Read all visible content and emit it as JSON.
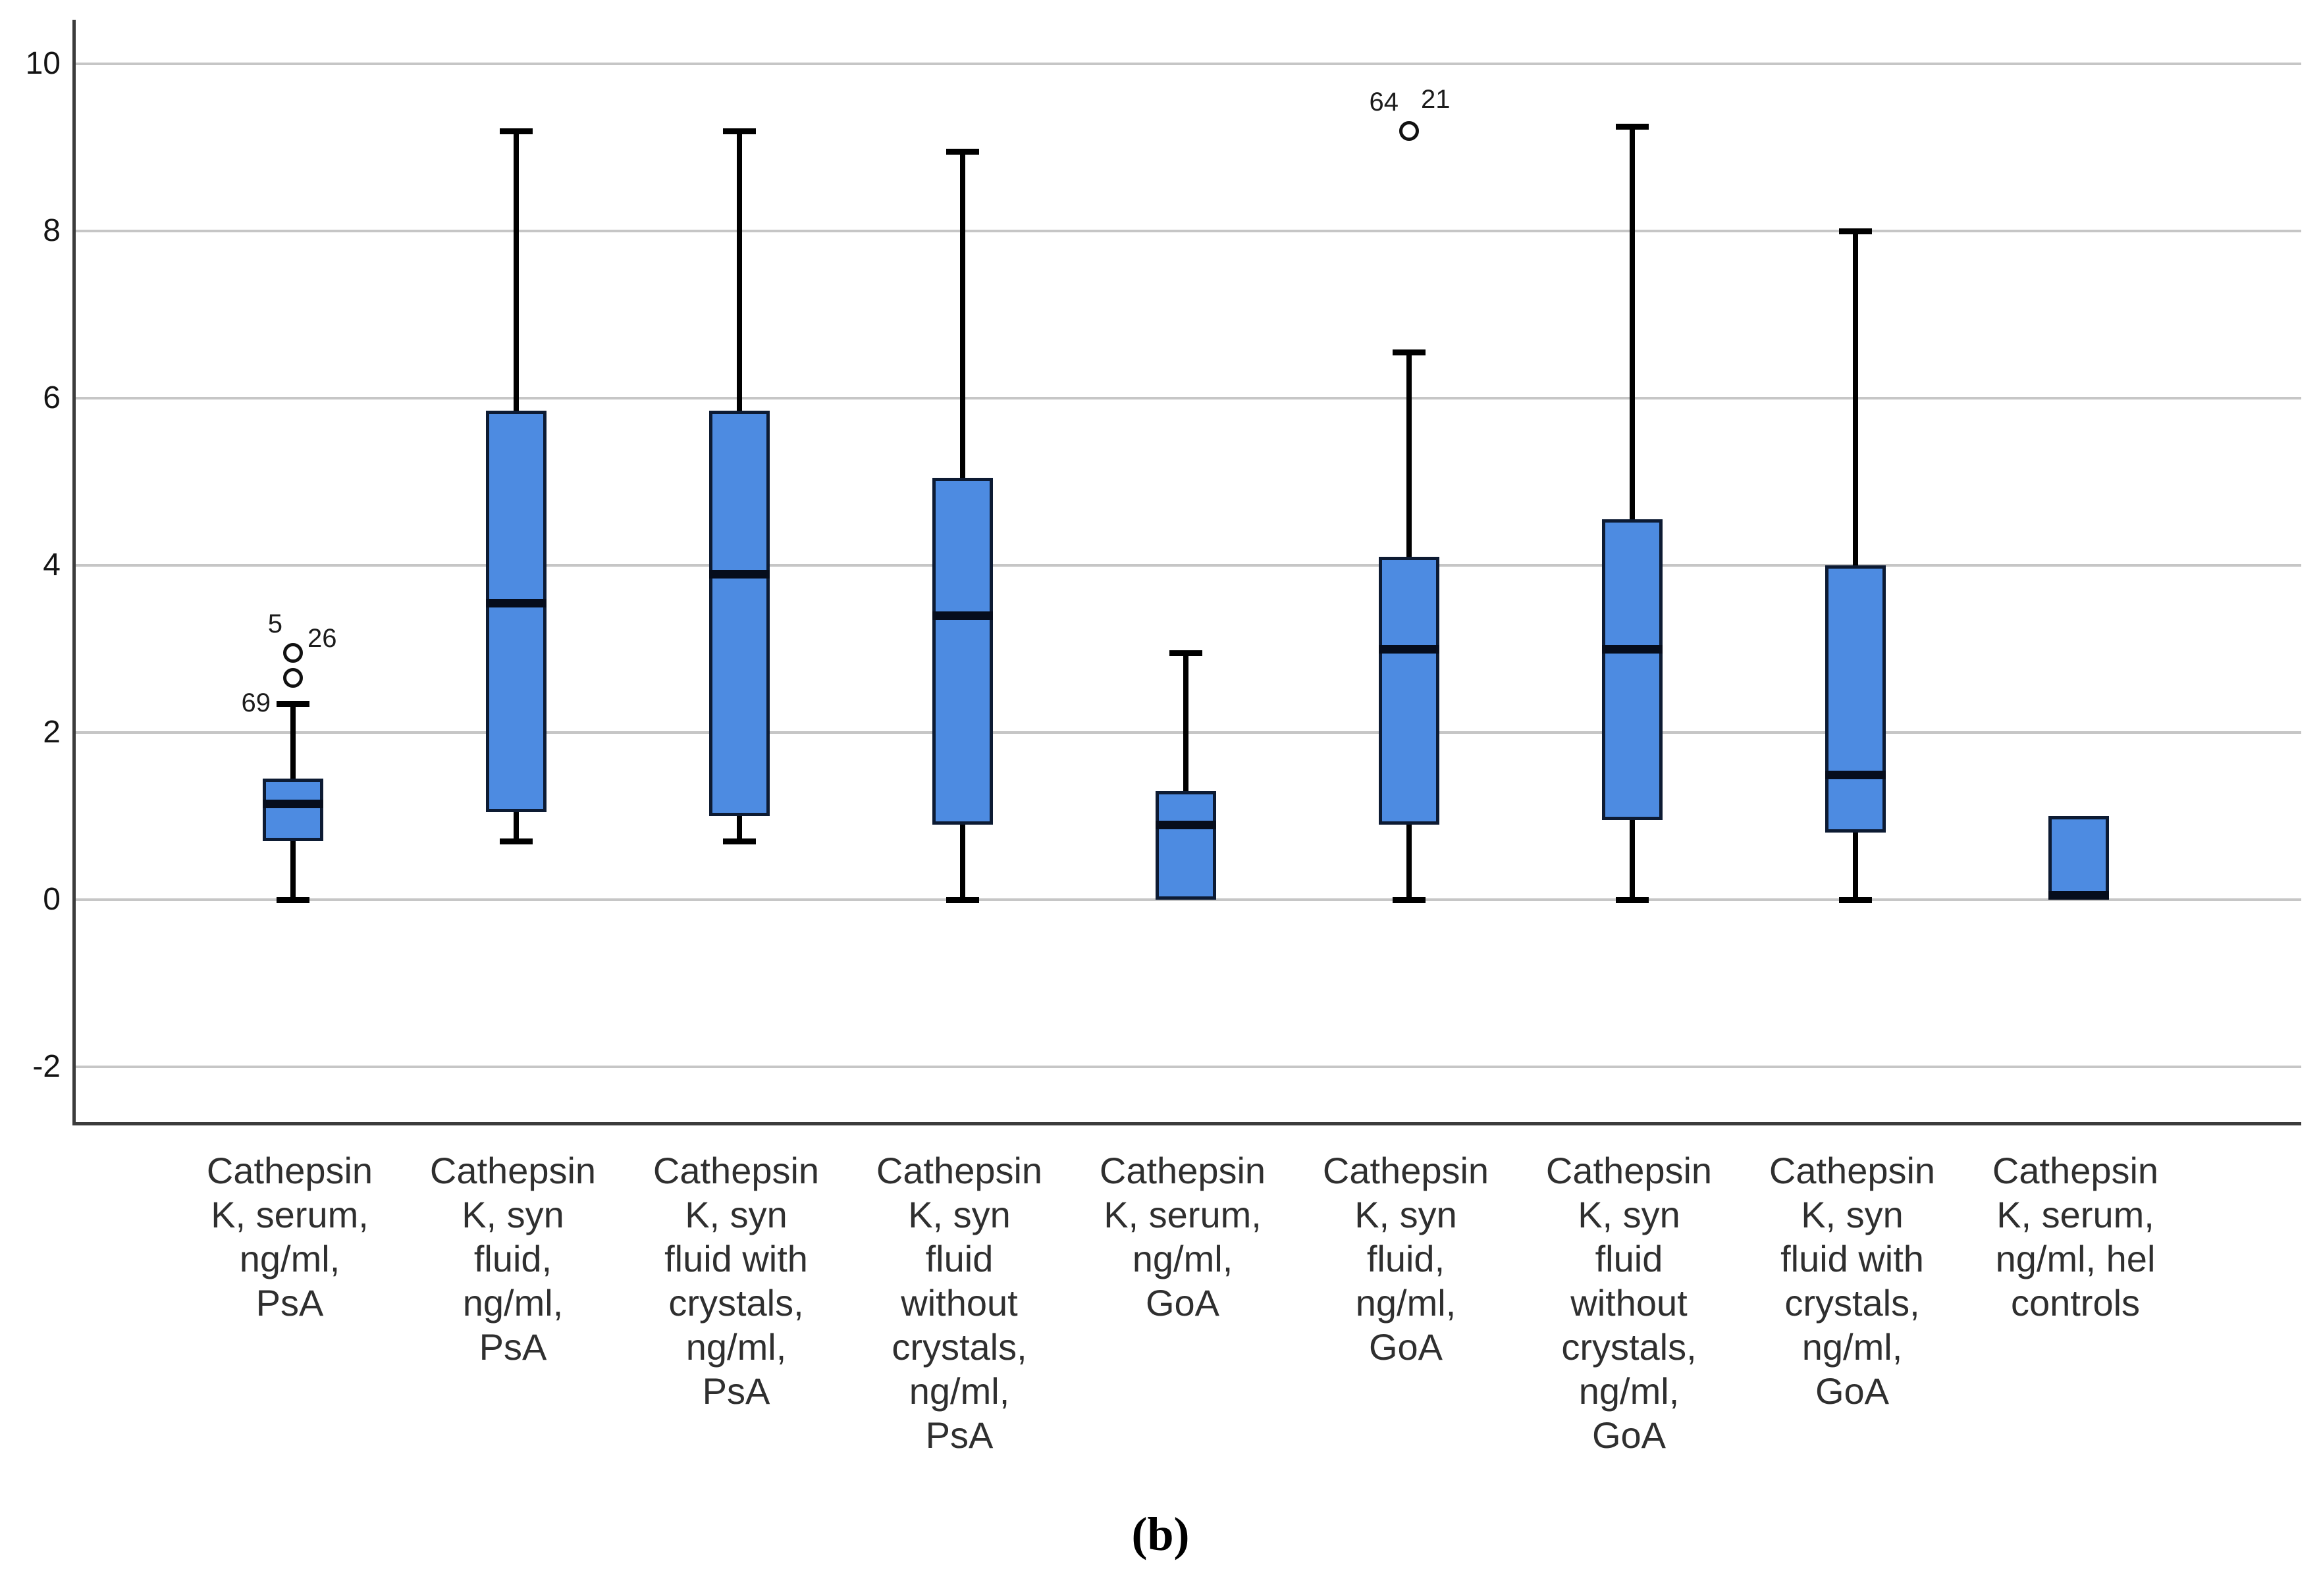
{
  "figure": {
    "caption": "(b)"
  },
  "chart_data": {
    "type": "box",
    "title": "",
    "xlabel": "",
    "ylabel": "",
    "ylim": [
      -2.66,
      10.53
    ],
    "yticks": [
      "10",
      "8",
      "6",
      "4",
      "2",
      "0",
      "-2"
    ],
    "grid": true,
    "legend": "none",
    "categories": [
      [
        "Cathepsin",
        "K, serum,",
        "ng/ml,",
        "PsA"
      ],
      [
        "Cathepsin",
        "K, syn",
        "fluid,",
        "ng/ml,",
        "PsA"
      ],
      [
        "Cathepsin",
        "K, syn",
        "fluid with",
        "crystals,",
        "ng/ml,",
        "PsA"
      ],
      [
        "Cathepsin",
        "K, syn",
        "fluid",
        "without",
        "crystals,",
        "ng/ml,",
        "PsA"
      ],
      [
        "Cathepsin",
        "K, serum,",
        "ng/ml,",
        "GoA"
      ],
      [
        "Cathepsin",
        "K, syn",
        "fluid,",
        "ng/ml,",
        "GoA"
      ],
      [
        "Cathepsin",
        "K, syn",
        "fluid",
        "without",
        "crystals,",
        "ng/ml,",
        "GoA"
      ],
      [
        "Cathepsin",
        "K, syn",
        "fluid with",
        "crystals,",
        "ng/ml,",
        "GoA"
      ],
      [
        "Cathepsin",
        "K, serum,",
        "ng/ml, hel",
        "controls"
      ]
    ],
    "boxes": [
      {
        "min": 0,
        "q1": 0.7,
        "median": 1.15,
        "q3": 1.45,
        "max": 2.35,
        "outliers": [
          {
            "value": 2.95,
            "labels": [
              {
                "text": "5",
                "pos": "above-left"
              },
              {
                "text": "26",
                "pos": "right"
              }
            ]
          },
          {
            "value": 2.65,
            "labels": [
              {
                "text": "69",
                "pos": "left-low"
              }
            ]
          }
        ]
      },
      {
        "min": 0.7,
        "q1": 1.05,
        "median": 3.55,
        "q3": 5.85,
        "max": 9.2,
        "outliers": []
      },
      {
        "min": 0.7,
        "q1": 1.0,
        "median": 3.9,
        "q3": 5.85,
        "max": 9.2,
        "outliers": []
      },
      {
        "min": 0,
        "q1": 0.9,
        "median": 3.4,
        "q3": 5.05,
        "max": 8.95,
        "outliers": []
      },
      {
        "min": 0,
        "q1": 0,
        "median": 0.9,
        "q3": 1.3,
        "max": 2.95,
        "outliers": []
      },
      {
        "min": 0,
        "q1": 0.9,
        "median": 3.0,
        "q3": 4.1,
        "max": 6.55,
        "outliers": [
          {
            "value": 9.2,
            "labels": [
              {
                "text": "64",
                "pos": "above-left"
              },
              {
                "text": "21",
                "pos": "above-right"
              }
            ]
          }
        ]
      },
      {
        "min": 0,
        "q1": 0.95,
        "median": 3.0,
        "q3": 4.55,
        "max": 9.25,
        "outliers": []
      },
      {
        "min": 0,
        "q1": 0.8,
        "median": 1.5,
        "q3": 4.0,
        "max": 8.0,
        "outliers": []
      },
      {
        "min": 0,
        "q1": 0,
        "median": 0,
        "q3": 1.0,
        "max": 1.0,
        "outliers": []
      }
    ],
    "colors": {
      "box_fill": "#4d8be1",
      "box_border": "#0d1b33",
      "median": "#060d1c",
      "whisker": "#000000",
      "outlier_stroke": "#111111",
      "gridline": "#c6c6c6",
      "axis": "#3c3c3c",
      "tick_text": "#141414",
      "category_text": "#2f2f2f"
    }
  }
}
